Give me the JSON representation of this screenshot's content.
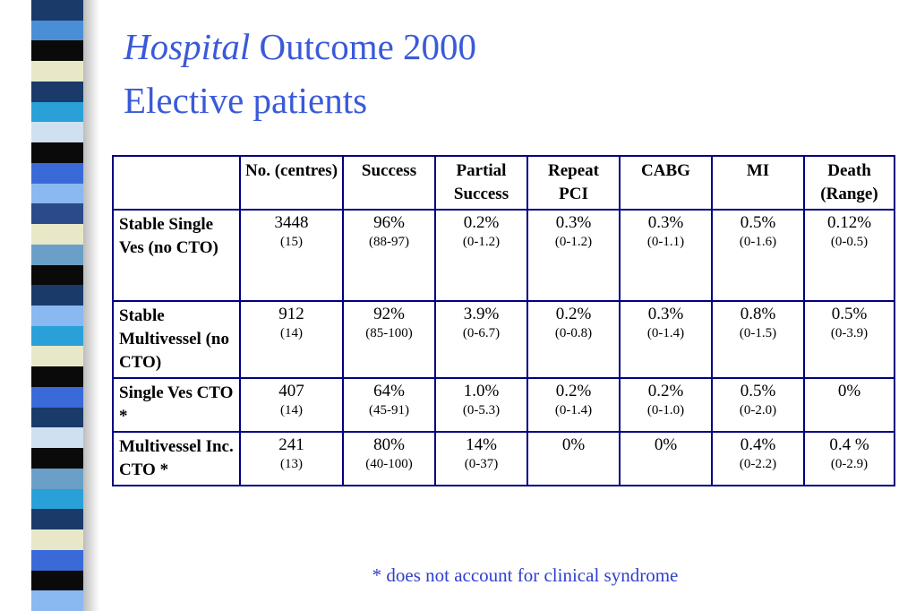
{
  "slide": {
    "title_italic": "Hospital",
    "title_rest": " Outcome 2000",
    "subtitle": "Elective patients",
    "footnote": "* does not account for clinical syndrome"
  },
  "colors": {
    "title": "#3a5ad8",
    "table_border": "#000080",
    "footnote": "#2f3fcf",
    "stripes": [
      "#1a3a6a",
      "#4a8fd6",
      "#0a0a0a",
      "#e8e8c8",
      "#1a3a6a",
      "#2aa0d8",
      "#cfe0f0",
      "#0a0a0a",
      "#3a6ad8",
      "#8ab8f0",
      "#2a4a8a",
      "#e8e8c8",
      "#6aa0c8",
      "#0a0a0a",
      "#1a3a6a",
      "#8ab8f0",
      "#2aa0d8",
      "#e8e8c8",
      "#0a0a0a",
      "#3a6ad8",
      "#1a3a6a",
      "#cfe0f0",
      "#0a0a0a",
      "#6aa0c8",
      "#2aa0d8",
      "#1a3a6a",
      "#e8e8c8",
      "#3a6ad8",
      "#0a0a0a",
      "#8ab8f0"
    ]
  },
  "table": {
    "headers": [
      "",
      "No. (centres)",
      "Success",
      "Partial Success",
      "Repeat PCI",
      "CABG",
      "MI",
      "Death (Range)"
    ],
    "rows": [
      {
        "label": "Stable Single Ves (no CTO)",
        "cells": [
          {
            "value": "3448",
            "range": "(15)"
          },
          {
            "value": "96%",
            "range": "(88-97)"
          },
          {
            "value": "0.2%",
            "range": "(0-1.2)"
          },
          {
            "value": "0.3%",
            "range": "(0-1.2)"
          },
          {
            "value": "0.3%",
            "range": "(0-1.1)"
          },
          {
            "value": "0.5%",
            "range": "(0-1.6)"
          },
          {
            "value": "0.12%",
            "range": "(0-0.5)"
          }
        ]
      },
      {
        "label": "Stable Multivessel (no CTO)",
        "cells": [
          {
            "value": "912",
            "range": "(14)"
          },
          {
            "value": "92%",
            "range": "(85-100)"
          },
          {
            "value": "3.9%",
            "range": "(0-6.7)"
          },
          {
            "value": "0.2%",
            "range": "(0-0.8)"
          },
          {
            "value": "0.3%",
            "range": "(0-1.4)"
          },
          {
            "value": "0.8%",
            "range": "(0-1.5)"
          },
          {
            "value": "0.5%",
            "range": "(0-3.9)"
          }
        ]
      },
      {
        "label": "Single Ves CTO *",
        "cells": [
          {
            "value": "407",
            "range": "(14)"
          },
          {
            "value": "64%",
            "range": "(45-91)"
          },
          {
            "value": "1.0%",
            "range": "(0-5.3)"
          },
          {
            "value": "0.2%",
            "range": "(0-1.4)"
          },
          {
            "value": "0.2%",
            "range": "(0-1.0)"
          },
          {
            "value": "0.5%",
            "range": "(0-2.0)"
          },
          {
            "value": "0%",
            "range": ""
          }
        ]
      },
      {
        "label": "Multivessel Inc. CTO *",
        "cells": [
          {
            "value": "241",
            "range": "(13)"
          },
          {
            "value": "80%",
            "range": "(40-100)"
          },
          {
            "value": "14%",
            "range": "(0-37)"
          },
          {
            "value": "0%",
            "range": ""
          },
          {
            "value": "0%",
            "range": ""
          },
          {
            "value": "0.4%",
            "range": "(0-2.2)"
          },
          {
            "value": "0.4 %",
            "range": "(0-2.9)"
          }
        ]
      }
    ]
  }
}
